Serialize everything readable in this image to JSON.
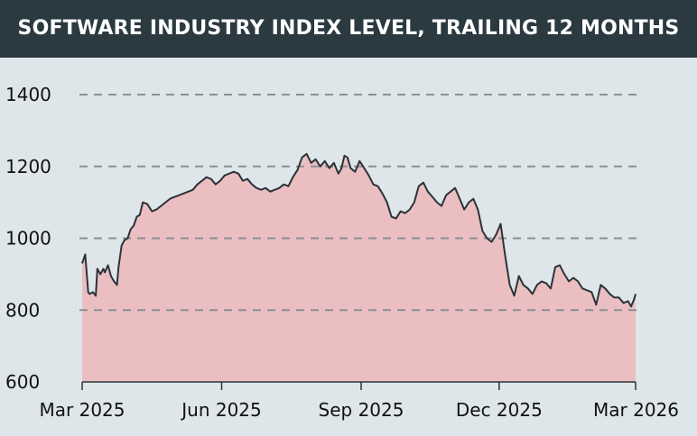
{
  "colors": {
    "title_bg": "#2b3a41",
    "title_fg": "#ffffff",
    "plot_bg": "#dfe6ea",
    "area_fill": "#ebbfc2",
    "line": "#2b3338",
    "grid": "#8a8f92"
  },
  "chart_data": {
    "type": "area",
    "title": "SOFTWARE INDUSTRY INDEX LEVEL, TRAILING 12 MONTHS",
    "xlabel": "",
    "ylabel": "",
    "ylim": [
      600,
      1400
    ],
    "yticks": [
      600,
      800,
      1000,
      1200,
      1400
    ],
    "ytick_labels": [
      "600",
      "800",
      "1000",
      "1200",
      "1400"
    ],
    "xlim": [
      "2025-03-01",
      "2026-03-01"
    ],
    "xticks": [
      "2025-03-01",
      "2025-06-01",
      "2025-09-01",
      "2025-12-01",
      "2026-03-01"
    ],
    "xtick_labels": [
      "Mar 2025",
      "Jun 2025",
      "Sep 2025",
      "Dec 2025",
      "Mar 2026"
    ],
    "grid": "horizontal-dashed",
    "legend": "none",
    "series": [
      {
        "x": [
          "2025-03-01",
          "2025-03-03",
          "2025-03-05",
          "2025-03-06",
          "2025-03-08",
          "2025-03-10",
          "2025-03-11",
          "2025-03-13",
          "2025-03-15",
          "2025-03-16",
          "2025-03-18",
          "2025-03-20",
          "2025-03-22",
          "2025-03-24",
          "2025-03-25",
          "2025-03-27",
          "2025-03-29",
          "2025-03-31",
          "2025-04-02",
          "2025-04-04",
          "2025-04-06",
          "2025-04-08",
          "2025-04-10",
          "2025-04-13",
          "2025-04-16",
          "2025-04-19",
          "2025-04-22",
          "2025-04-25",
          "2025-04-28",
          "2025-05-01",
          "2025-05-04",
          "2025-05-07",
          "2025-05-10",
          "2025-05-13",
          "2025-05-16",
          "2025-05-19",
          "2025-05-22",
          "2025-05-25",
          "2025-05-28",
          "2025-05-31",
          "2025-06-03",
          "2025-06-06",
          "2025-06-09",
          "2025-06-12",
          "2025-06-15",
          "2025-06-18",
          "2025-06-21",
          "2025-06-24",
          "2025-06-27",
          "2025-06-30",
          "2025-07-03",
          "2025-07-06",
          "2025-07-09",
          "2025-07-12",
          "2025-07-15",
          "2025-07-18",
          "2025-07-21",
          "2025-07-24",
          "2025-07-27",
          "2025-07-30",
          "2025-08-02",
          "2025-08-05",
          "2025-08-08",
          "2025-08-11",
          "2025-08-14",
          "2025-08-17",
          "2025-08-19",
          "2025-08-21",
          "2025-08-23",
          "2025-08-25",
          "2025-08-28",
          "2025-08-31",
          "2025-09-03",
          "2025-09-06",
          "2025-09-09",
          "2025-09-12",
          "2025-09-15",
          "2025-09-18",
          "2025-09-21",
          "2025-09-24",
          "2025-09-27",
          "2025-09-30",
          "2025-10-03",
          "2025-10-06",
          "2025-10-09",
          "2025-10-12",
          "2025-10-15",
          "2025-10-18",
          "2025-10-21",
          "2025-10-24",
          "2025-10-27",
          "2025-10-30",
          "2025-11-02",
          "2025-11-05",
          "2025-11-08",
          "2025-11-11",
          "2025-11-14",
          "2025-11-17",
          "2025-11-20",
          "2025-11-23",
          "2025-11-26",
          "2025-11-29",
          "2025-12-02",
          "2025-12-05",
          "2025-12-08",
          "2025-12-11",
          "2025-12-14",
          "2025-12-17",
          "2025-12-20",
          "2025-12-23",
          "2025-12-26",
          "2025-12-29",
          "2026-01-01",
          "2026-01-04",
          "2026-01-07",
          "2026-01-10",
          "2026-01-13",
          "2026-01-16",
          "2026-01-19",
          "2026-01-22",
          "2026-01-25",
          "2026-01-28",
          "2026-01-31",
          "2026-02-03",
          "2026-02-06",
          "2026-02-09",
          "2026-02-12",
          "2026-02-15",
          "2026-02-18",
          "2026-02-21",
          "2026-02-24",
          "2026-02-26",
          "2026-02-28",
          "2026-03-01"
        ],
        "values": [
          930,
          955,
          850,
          845,
          850,
          840,
          915,
          900,
          915,
          905,
          925,
          895,
          880,
          870,
          920,
          980,
          995,
          1000,
          1025,
          1035,
          1060,
          1065,
          1100,
          1095,
          1075,
          1080,
          1090,
          1100,
          1110,
          1115,
          1120,
          1125,
          1130,
          1135,
          1150,
          1160,
          1170,
          1165,
          1150,
          1160,
          1175,
          1180,
          1185,
          1180,
          1160,
          1165,
          1150,
          1140,
          1135,
          1140,
          1130,
          1135,
          1140,
          1150,
          1145,
          1170,
          1190,
          1225,
          1235,
          1210,
          1220,
          1200,
          1215,
          1195,
          1210,
          1180,
          1195,
          1230,
          1225,
          1195,
          1185,
          1215,
          1195,
          1175,
          1150,
          1145,
          1125,
          1100,
          1060,
          1055,
          1075,
          1070,
          1080,
          1100,
          1145,
          1155,
          1130,
          1115,
          1100,
          1090,
          1120,
          1130,
          1140,
          1110,
          1080,
          1100,
          1110,
          1080,
          1020,
          1000,
          990,
          1010,
          1040,
          950,
          870,
          840,
          895,
          870,
          860,
          845,
          870,
          880,
          875,
          860,
          920,
          925,
          900,
          880,
          890,
          880,
          860,
          855,
          850,
          815,
          870,
          860,
          845,
          835,
          835,
          820,
          825,
          810,
          830,
          845
        ]
      }
    ]
  }
}
